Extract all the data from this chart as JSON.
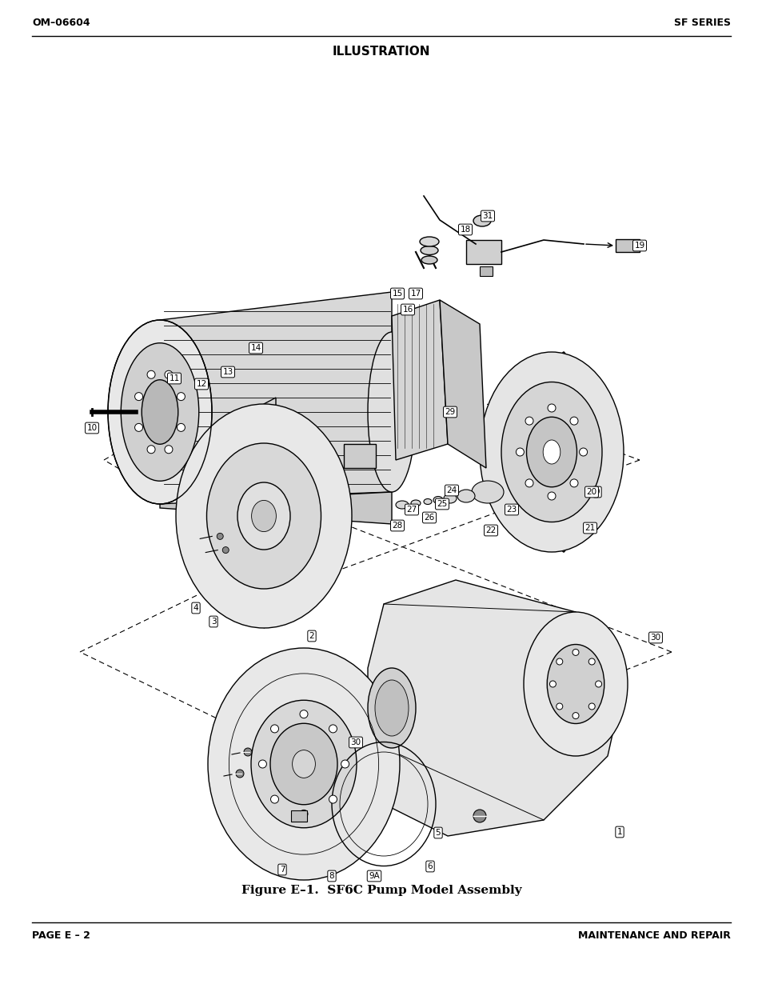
{
  "page_bg": "#ffffff",
  "header_left": "OM–06604",
  "header_right": "SF SERIES",
  "header_title": "ILLUSTRATION",
  "footer_left": "PAGE E – 2",
  "footer_right": "MAINTENANCE AND REPAIR",
  "figure_caption": "Figure E–1.  SF6C Pump Model Assembly",
  "header_font_size": 9,
  "title_font_size": 11,
  "footer_font_size": 9,
  "caption_font_size": 11,
  "text_color": "#000000",
  "label_fontsize": 7.5
}
